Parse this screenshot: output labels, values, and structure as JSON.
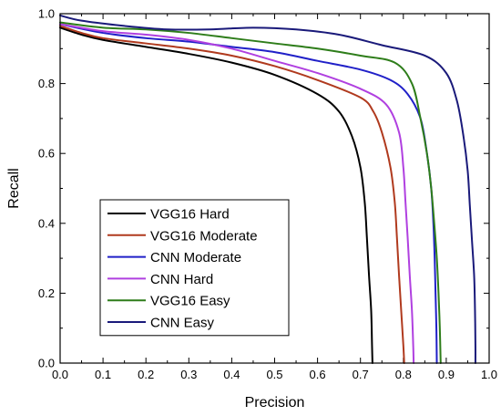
{
  "chart_data": {
    "type": "line",
    "title": "",
    "xlabel": "Precision",
    "ylabel": "Recall",
    "xlim": [
      0.0,
      1.0
    ],
    "ylim": [
      0.0,
      1.0
    ],
    "grid": false,
    "legend_position": "lower-left",
    "x_ticks": [
      "0.0",
      "0.1",
      "0.2",
      "0.3",
      "0.4",
      "0.5",
      "0.6",
      "0.7",
      "0.8",
      "0.9",
      "1.0"
    ],
    "y_ticks": [
      "0.0",
      "0.2",
      "0.4",
      "0.6",
      "0.8",
      "1.0"
    ],
    "series": [
      {
        "name": "VGG16 Hard",
        "color": "#000000",
        "points": [
          [
            0.0,
            0.96
          ],
          [
            0.05,
            0.94
          ],
          [
            0.1,
            0.925
          ],
          [
            0.2,
            0.905
          ],
          [
            0.3,
            0.885
          ],
          [
            0.4,
            0.86
          ],
          [
            0.5,
            0.825
          ],
          [
            0.6,
            0.77
          ],
          [
            0.65,
            0.72
          ],
          [
            0.68,
            0.65
          ],
          [
            0.7,
            0.56
          ],
          [
            0.71,
            0.46
          ],
          [
            0.715,
            0.36
          ],
          [
            0.72,
            0.25
          ],
          [
            0.725,
            0.15
          ],
          [
            0.727,
            0.05
          ],
          [
            0.728,
            0.0
          ]
        ]
      },
      {
        "name": "VGG16 Moderate",
        "color": "#b03a1e",
        "points": [
          [
            0.0,
            0.965
          ],
          [
            0.05,
            0.945
          ],
          [
            0.1,
            0.93
          ],
          [
            0.2,
            0.915
          ],
          [
            0.3,
            0.9
          ],
          [
            0.4,
            0.88
          ],
          [
            0.5,
            0.85
          ],
          [
            0.6,
            0.81
          ],
          [
            0.7,
            0.76
          ],
          [
            0.73,
            0.72
          ],
          [
            0.75,
            0.66
          ],
          [
            0.77,
            0.56
          ],
          [
            0.78,
            0.46
          ],
          [
            0.785,
            0.36
          ],
          [
            0.79,
            0.25
          ],
          [
            0.795,
            0.15
          ],
          [
            0.8,
            0.05
          ],
          [
            0.802,
            0.0
          ]
        ]
      },
      {
        "name": "CNN Moderate",
        "color": "#2020c8",
        "points": [
          [
            0.0,
            0.97
          ],
          [
            0.1,
            0.945
          ],
          [
            0.2,
            0.93
          ],
          [
            0.3,
            0.92
          ],
          [
            0.4,
            0.905
          ],
          [
            0.5,
            0.89
          ],
          [
            0.6,
            0.865
          ],
          [
            0.7,
            0.84
          ],
          [
            0.77,
            0.81
          ],
          [
            0.81,
            0.77
          ],
          [
            0.84,
            0.7
          ],
          [
            0.855,
            0.6
          ],
          [
            0.865,
            0.5
          ],
          [
            0.87,
            0.4
          ],
          [
            0.873,
            0.3
          ],
          [
            0.875,
            0.2
          ],
          [
            0.877,
            0.1
          ],
          [
            0.878,
            0.0
          ]
        ]
      },
      {
        "name": "CNN Hard",
        "color": "#b040e0",
        "points": [
          [
            0.0,
            0.97
          ],
          [
            0.1,
            0.95
          ],
          [
            0.2,
            0.94
          ],
          [
            0.3,
            0.925
          ],
          [
            0.4,
            0.9
          ],
          [
            0.5,
            0.865
          ],
          [
            0.6,
            0.83
          ],
          [
            0.7,
            0.785
          ],
          [
            0.76,
            0.74
          ],
          [
            0.79,
            0.66
          ],
          [
            0.8,
            0.56
          ],
          [
            0.805,
            0.46
          ],
          [
            0.81,
            0.36
          ],
          [
            0.815,
            0.25
          ],
          [
            0.82,
            0.15
          ],
          [
            0.823,
            0.05
          ],
          [
            0.824,
            0.0
          ]
        ]
      },
      {
        "name": "VGG16 Easy",
        "color": "#2e7d1a",
        "points": [
          [
            0.0,
            0.975
          ],
          [
            0.1,
            0.96
          ],
          [
            0.2,
            0.955
          ],
          [
            0.3,
            0.945
          ],
          [
            0.4,
            0.93
          ],
          [
            0.5,
            0.915
          ],
          [
            0.6,
            0.9
          ],
          [
            0.7,
            0.88
          ],
          [
            0.78,
            0.86
          ],
          [
            0.82,
            0.8
          ],
          [
            0.84,
            0.7
          ],
          [
            0.855,
            0.6
          ],
          [
            0.865,
            0.5
          ],
          [
            0.872,
            0.4
          ],
          [
            0.878,
            0.3
          ],
          [
            0.882,
            0.2
          ],
          [
            0.885,
            0.1
          ],
          [
            0.887,
            0.0
          ]
        ]
      },
      {
        "name": "CNN Easy",
        "color": "#1a1a7a",
        "points": [
          [
            0.0,
            0.995
          ],
          [
            0.05,
            0.98
          ],
          [
            0.15,
            0.965
          ],
          [
            0.25,
            0.955
          ],
          [
            0.35,
            0.955
          ],
          [
            0.45,
            0.96
          ],
          [
            0.55,
            0.955
          ],
          [
            0.65,
            0.94
          ],
          [
            0.75,
            0.91
          ],
          [
            0.85,
            0.88
          ],
          [
            0.9,
            0.83
          ],
          [
            0.925,
            0.75
          ],
          [
            0.94,
            0.65
          ],
          [
            0.95,
            0.55
          ],
          [
            0.955,
            0.45
          ],
          [
            0.96,
            0.35
          ],
          [
            0.965,
            0.25
          ],
          [
            0.967,
            0.15
          ],
          [
            0.968,
            0.05
          ],
          [
            0.968,
            0.0
          ]
        ]
      }
    ]
  }
}
